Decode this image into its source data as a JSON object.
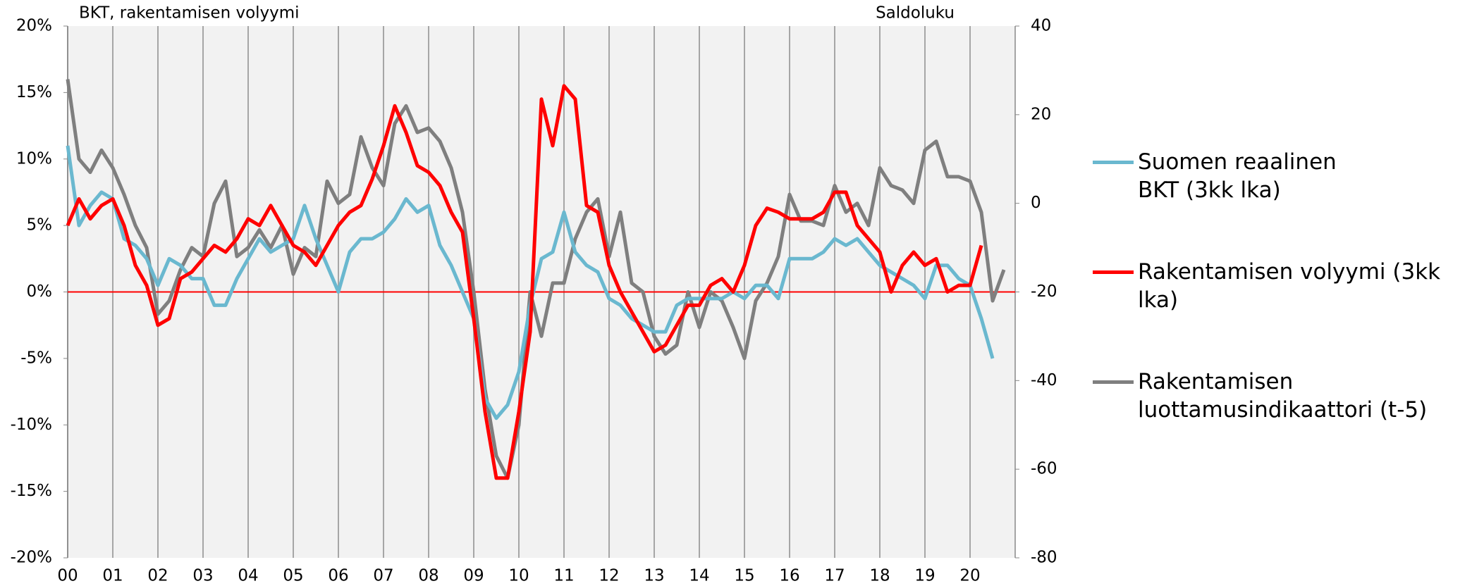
{
  "chart_data": {
    "type": "line",
    "y_label": "BKT, rakentamisen volyymi",
    "y2_label": "Saldoluku",
    "x": [
      0,
      0.25,
      0.5,
      0.75,
      1,
      1.25,
      1.5,
      1.75,
      2,
      2.25,
      2.5,
      2.75,
      3,
      3.25,
      3.5,
      3.75,
      4,
      4.25,
      4.5,
      4.75,
      5,
      5.25,
      5.5,
      5.75,
      6,
      6.25,
      6.5,
      6.75,
      7,
      7.25,
      7.5,
      7.75,
      8,
      8.25,
      8.5,
      8.75,
      9,
      9.25,
      9.5,
      9.75,
      10,
      10.25,
      10.5,
      10.75,
      11,
      11.25,
      11.5,
      11.75,
      12,
      12.25,
      12.5,
      12.75,
      13,
      13.25,
      13.5,
      13.75,
      14,
      14.25,
      14.5,
      14.75,
      15,
      15.25,
      15.5,
      15.75,
      16,
      16.25,
      16.5,
      16.75,
      17,
      17.25,
      17.5,
      17.75,
      18,
      18.25,
      18.5,
      18.75,
      19,
      19.25,
      19.5,
      19.75,
      20,
      20.25,
      20.5,
      20.75
    ],
    "xlim": [
      0,
      21
    ],
    "xticks": [
      {
        "value": 0,
        "label": "00"
      },
      {
        "value": 1,
        "label": "01"
      },
      {
        "value": 2,
        "label": "02"
      },
      {
        "value": 3,
        "label": "03"
      },
      {
        "value": 4,
        "label": "04"
      },
      {
        "value": 5,
        "label": "05"
      },
      {
        "value": 6,
        "label": "06"
      },
      {
        "value": 7,
        "label": "07"
      },
      {
        "value": 8,
        "label": "08"
      },
      {
        "value": 9,
        "label": "09"
      },
      {
        "value": 10,
        "label": "10"
      },
      {
        "value": 11,
        "label": "11"
      },
      {
        "value": 12,
        "label": "12"
      },
      {
        "value": 13,
        "label": "13"
      },
      {
        "value": 14,
        "label": "14"
      },
      {
        "value": 15,
        "label": "15"
      },
      {
        "value": 16,
        "label": "16"
      },
      {
        "value": 17,
        "label": "17"
      },
      {
        "value": 18,
        "label": "18"
      },
      {
        "value": 19,
        "label": "19"
      },
      {
        "value": 20,
        "label": "20"
      }
    ],
    "ylim": [
      -20,
      20
    ],
    "yticks": [
      {
        "value": -20,
        "label": "-20%"
      },
      {
        "value": -15,
        "label": "-15%"
      },
      {
        "value": -10,
        "label": "-10%"
      },
      {
        "value": -5,
        "label": "-5%"
      },
      {
        "value": 0,
        "label": "0%"
      },
      {
        "value": 5,
        "label": "5%"
      },
      {
        "value": 10,
        "label": "10%"
      },
      {
        "value": 15,
        "label": "15%"
      },
      {
        "value": 20,
        "label": "20%"
      }
    ],
    "y2lim": [
      -80,
      40
    ],
    "y2ticks": [
      -80,
      -60,
      -40,
      -20,
      0,
      20,
      40
    ],
    "grid": "x",
    "zero_line_color": "#ff0000",
    "plot_background": "#f2f2f2",
    "series": [
      {
        "name": "Suomen reaalinen BKT (3kk lka)",
        "color": "#6ab8cf",
        "values": [
          11,
          5,
          6.5,
          7.5,
          7,
          4,
          3.5,
          2.5,
          0.5,
          2.5,
          2,
          1,
          1,
          -1,
          -1,
          1,
          2.5,
          4,
          3,
          3.5,
          4,
          6.5,
          4,
          2,
          0,
          3,
          4,
          4,
          4.5,
          5.5,
          7,
          6,
          6.5,
          3.5,
          2,
          0,
          -2,
          -8,
          -9.5,
          -8.5,
          -6,
          -1,
          2.5,
          3,
          6,
          3,
          2,
          1.5,
          -0.5,
          -1,
          -2,
          -2.5,
          -3,
          -3,
          -1,
          -0.5,
          -0.5,
          -0.5,
          -0.5,
          0,
          -0.5,
          0.5,
          0.5,
          -0.5,
          2.5,
          2.5,
          2.5,
          3,
          4,
          3.5,
          4,
          3,
          2,
          1.5,
          1,
          0.5,
          -0.5,
          2,
          2,
          1,
          0.5,
          -2,
          -5,
          null
        ]
      },
      {
        "name": "Rakentamisen volyymi (3kk lka)",
        "color": "#ff0000",
        "values": [
          5,
          7,
          5.5,
          6.5,
          7,
          5,
          2,
          0.5,
          -2.5,
          -2,
          1,
          1.5,
          2.5,
          3.5,
          3,
          4,
          5.5,
          5,
          6.5,
          5,
          3.5,
          3,
          2,
          3.5,
          5,
          6,
          6.5,
          8.5,
          11,
          14,
          12,
          9.5,
          9,
          8,
          6,
          4.5,
          -2,
          -9,
          -14,
          -14,
          -9,
          -3,
          14.5,
          11,
          15.5,
          14.5,
          6.5,
          6,
          2,
          0,
          -1.5,
          -3,
          -4.5,
          -4,
          -2.5,
          -1,
          -1,
          0.5,
          1,
          0,
          2,
          5,
          6.3,
          6,
          5.5,
          5.5,
          5.5,
          6,
          7.5,
          7.5,
          5,
          4,
          3,
          0,
          2,
          3,
          2,
          2.5,
          0,
          0.5,
          0.5,
          3.5,
          null,
          null
        ]
      },
      {
        "name": "Rakentamisen luottamusindikaattori (t-5)",
        "color": "#7f7f7f",
        "axis": "y2",
        "values": [
          28,
          10,
          7,
          12,
          8,
          2,
          -5,
          -10,
          -25,
          -22,
          -15,
          -10,
          -12,
          0,
          5,
          -12,
          -10,
          -6,
          -10,
          -5,
          -16,
          -10,
          -12,
          5,
          0,
          2,
          15,
          8,
          4,
          18,
          22,
          16,
          17,
          14,
          8,
          -2,
          -20,
          -42,
          -57,
          -62,
          -50,
          -20,
          -30,
          -18,
          -18,
          -8,
          -2,
          1,
          -12,
          -2,
          -18,
          -20,
          -30,
          -34,
          -32,
          -20,
          -28,
          -20,
          -22,
          -28,
          -35,
          -22,
          -18,
          -12,
          2,
          -4,
          -4,
          -5,
          4,
          -2,
          0,
          -5,
          8,
          4,
          3,
          0,
          12,
          14,
          6,
          6,
          5,
          -2,
          -22,
          -15
        ]
      }
    ]
  }
}
